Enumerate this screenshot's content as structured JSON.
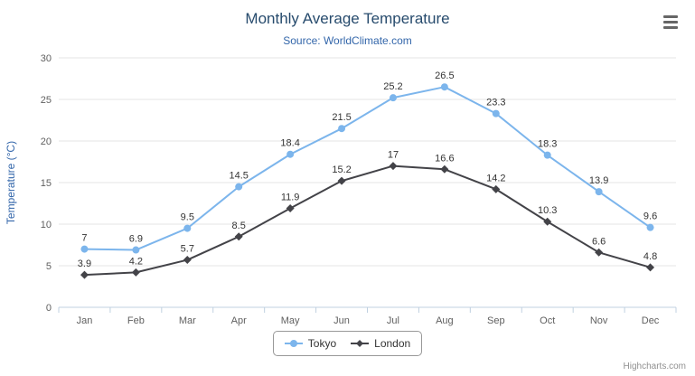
{
  "chart_data": {
    "type": "line",
    "title": "Monthly Average Temperature",
    "subtitle": "Source: WorldClimate.com",
    "categories": [
      "Jan",
      "Feb",
      "Mar",
      "Apr",
      "May",
      "Jun",
      "Jul",
      "Aug",
      "Sep",
      "Oct",
      "Nov",
      "Dec"
    ],
    "series": [
      {
        "name": "Tokyo",
        "color": "#7cb5ec",
        "marker": "circle",
        "values": [
          7,
          6.9,
          9.5,
          14.5,
          18.4,
          21.5,
          25.2,
          26.5,
          23.3,
          18.3,
          13.9,
          9.6
        ]
      },
      {
        "name": "London",
        "color": "#434348",
        "marker": "diamond",
        "values": [
          3.9,
          4.2,
          5.7,
          8.5,
          11.9,
          15.2,
          17,
          16.6,
          14.2,
          10.3,
          6.6,
          4.8
        ]
      }
    ],
    "xlabel": "",
    "ylabel": "Temperature (°C)",
    "ylim": [
      0,
      30
    ],
    "yticks": [
      0,
      5,
      10,
      15,
      20,
      25,
      30
    ],
    "grid": true,
    "legend_position": "bottom",
    "credits": "Highcharts.com"
  },
  "colors": {
    "title": "#274b6d",
    "subtitle": "#3366aa",
    "axis_title": "#3366aa",
    "axis_labels": "#606060",
    "data_labels": "#333333",
    "gridline": "#e6e6e6",
    "axis_line": "#c0d0e0",
    "legend_border": "#999999",
    "legend_text": "#333333",
    "credits_text": "#909090",
    "menu_icon": "#666666"
  }
}
